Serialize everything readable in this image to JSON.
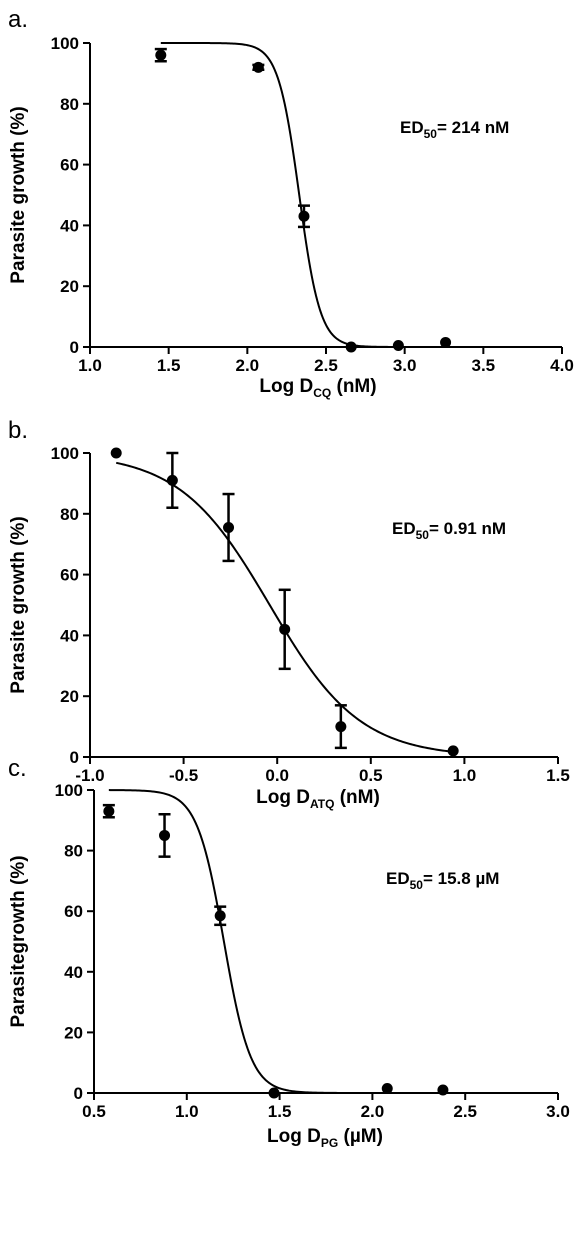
{
  "chart_data": [
    {
      "type": "scatter",
      "panel_label": "a.",
      "xlabel": {
        "main": "Log D",
        "sub": "CQ",
        "tail": " (nM)"
      },
      "ylabel": "Parasite growth (%)",
      "xlim": [
        1.0,
        4.0
      ],
      "ylim": [
        0,
        100
      ],
      "xticks": [
        1.0,
        1.5,
        2.0,
        2.5,
        3.0,
        3.5,
        4.0
      ],
      "xtick_labels": [
        "1.0",
        "1.5",
        "2.0",
        "2.5",
        "3.0",
        "3.5",
        "4.0"
      ],
      "yticks": [
        0,
        20,
        40,
        60,
        80,
        100
      ],
      "ytick_labels": [
        "0",
        "20",
        "40",
        "60",
        "80",
        "100"
      ],
      "annotation": {
        "main": "ED",
        "sub": "50",
        "tail": "= 214 nM"
      },
      "series": [
        {
          "points": [
            {
              "x": 1.45,
              "y": 96,
              "err": 2
            },
            {
              "x": 2.07,
              "y": 92,
              "err": 0.8
            },
            {
              "x": 2.36,
              "y": 43,
              "err": 3.5
            },
            {
              "x": 2.66,
              "y": 0,
              "err": 0
            },
            {
              "x": 2.96,
              "y": 0.5,
              "err": 0
            },
            {
              "x": 3.26,
              "y": 1.5,
              "err": 0
            }
          ],
          "fit": {
            "model": "sigmoid",
            "top": 100,
            "bottom": 0,
            "log_ed50": 2.33,
            "hill": 6.5
          }
        }
      ]
    },
    {
      "type": "scatter",
      "panel_label": "b.",
      "xlabel": {
        "main": "Log D",
        "sub": "ATQ",
        "tail": " (nM)"
      },
      "ylabel": "Parasite growth (%)",
      "xlim": [
        -1.0,
        1.5
      ],
      "ylim": [
        0,
        100
      ],
      "xticks": [
        -1.0,
        -0.5,
        0.0,
        0.5,
        1.0,
        1.5
      ],
      "xtick_labels": [
        "-1.0",
        "-0.5",
        "0.0",
        "0.5",
        "1.0",
        "1.5"
      ],
      "yticks": [
        0,
        20,
        40,
        60,
        80,
        100
      ],
      "ytick_labels": [
        "0",
        "20",
        "40",
        "60",
        "80",
        "100"
      ],
      "annotation": {
        "main": "ED",
        "sub": "50",
        "tail": "= 0.91 nM"
      },
      "series": [
        {
          "points": [
            {
              "x": -0.86,
              "y": 100,
              "err": 0
            },
            {
              "x": -0.56,
              "y": 91,
              "err": 9
            },
            {
              "x": -0.26,
              "y": 75.5,
              "err": 11
            },
            {
              "x": 0.04,
              "y": 42,
              "err": 13
            },
            {
              "x": 0.34,
              "y": 10,
              "err": 7
            },
            {
              "x": 0.94,
              "y": 2,
              "err": 0
            }
          ],
          "fit": {
            "model": "sigmoid",
            "top": 100,
            "bottom": 0,
            "log_ed50": -0.04,
            "hill": 1.8
          }
        }
      ]
    },
    {
      "type": "scatter",
      "panel_label": "c.",
      "xlabel": {
        "main": "Log D",
        "sub": "PG",
        "tail": " (µM)"
      },
      "ylabel": "Parasitegrowth (%)",
      "xlim": [
        0.5,
        3.0
      ],
      "ylim": [
        0,
        100
      ],
      "xticks": [
        0.5,
        1.0,
        1.5,
        2.0,
        2.5,
        3.0
      ],
      "xtick_labels": [
        "0.5",
        "1.0",
        "1.5",
        "2.0",
        "2.5",
        "3.0"
      ],
      "yticks": [
        0,
        20,
        40,
        60,
        80,
        100
      ],
      "ytick_labels": [
        "0",
        "20",
        "40",
        "60",
        "80",
        "100"
      ],
      "annotation": {
        "main": "ED",
        "sub": "50",
        "tail": "= 15.8 µM"
      },
      "series": [
        {
          "points": [
            {
              "x": 0.58,
              "y": 93,
              "err": 2
            },
            {
              "x": 0.88,
              "y": 85,
              "err": 7
            },
            {
              "x": 1.18,
              "y": 58.5,
              "err": 3
            },
            {
              "x": 1.47,
              "y": 0,
              "err": 0
            },
            {
              "x": 2.08,
              "y": 1.5,
              "err": 0
            },
            {
              "x": 2.38,
              "y": 1,
              "err": 0
            }
          ],
          "fit": {
            "model": "sigmoid",
            "top": 100,
            "bottom": 0,
            "log_ed50": 1.2,
            "hill": 6.0
          }
        }
      ]
    }
  ]
}
